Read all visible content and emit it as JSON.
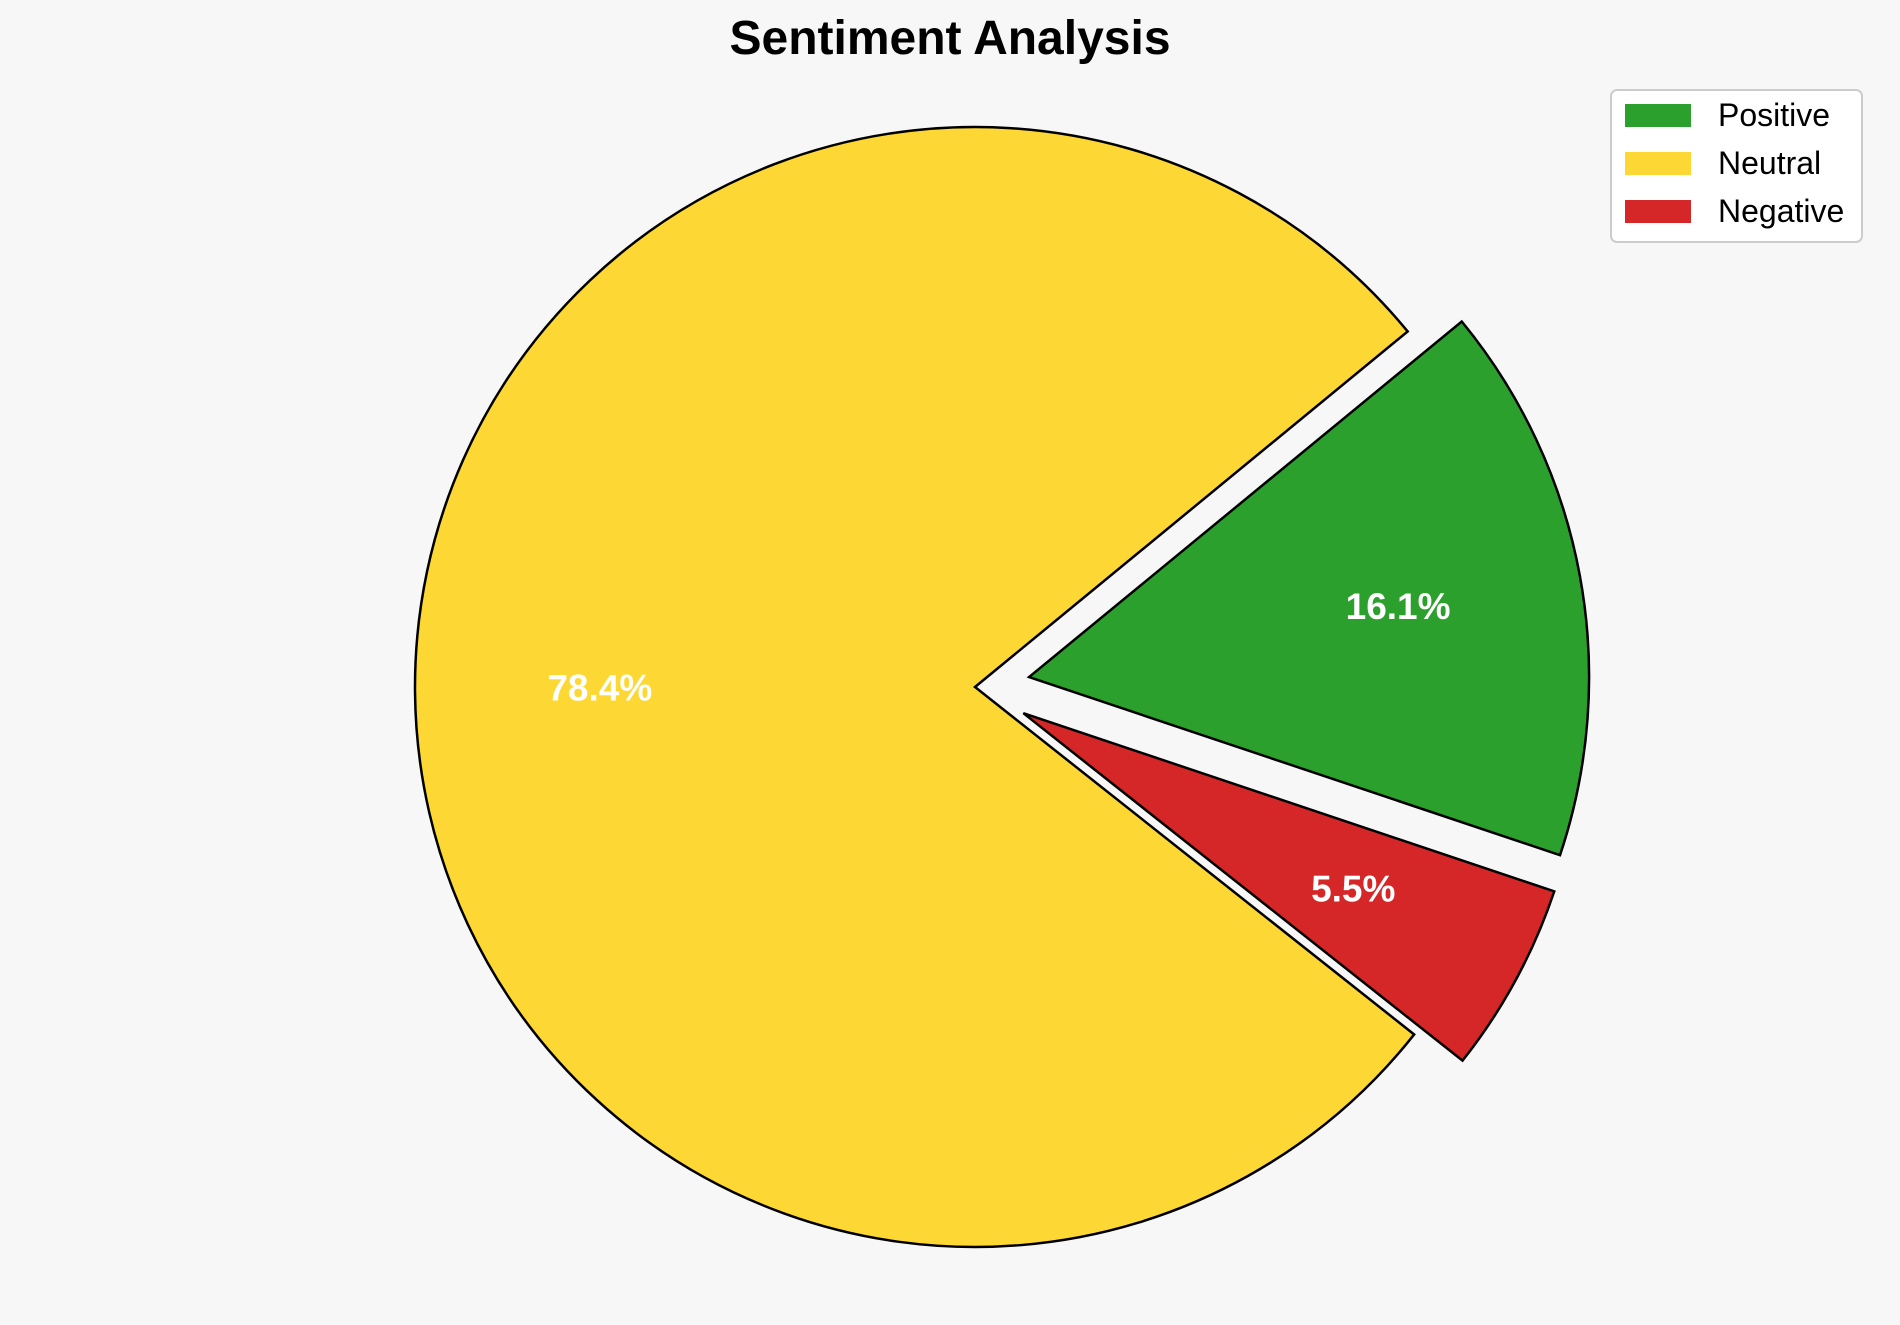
{
  "chart_data": {
    "type": "pie",
    "title": "Sentiment Analysis",
    "categories": [
      "Positive",
      "Neutral",
      "Negative"
    ],
    "values": [
      16.1,
      78.4,
      5.5
    ],
    "labels": [
      "16.1%",
      "78.4%",
      "5.5%"
    ],
    "colors": [
      "#2ca02c",
      "#fdd835",
      "#d62728"
    ],
    "exploded": [
      true,
      false,
      true
    ],
    "legend_position": "top-right"
  }
}
